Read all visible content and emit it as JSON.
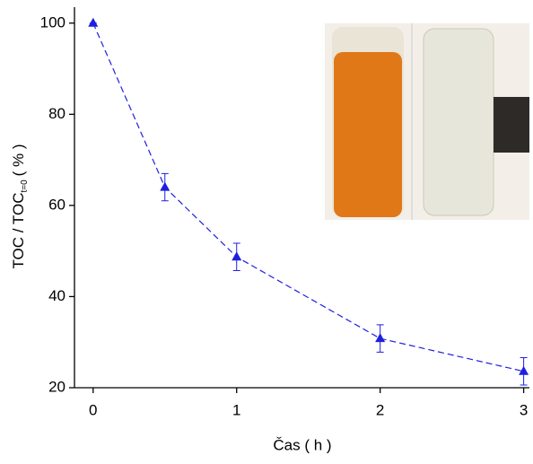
{
  "chart_data": {
    "type": "line",
    "x": [
      0,
      0.5,
      1,
      2,
      3
    ],
    "series": [
      {
        "values": [
          100,
          64,
          48.7,
          30.8,
          23.6
        ],
        "errors": [
          0,
          3,
          3,
          3,
          3
        ],
        "color": "#1f1fe0"
      }
    ],
    "xlim": [
      -0.13,
      3.04
    ],
    "ylim": [
      20,
      103.5
    ],
    "xticks": [
      0,
      1,
      2,
      3
    ],
    "yticks": [
      20,
      40,
      60,
      80,
      100
    ],
    "xlabel": "Čas ( h )",
    "ylabel": "TOC / TOC",
    "ylabel_sub": "t=0",
    "ylabel_unit": "( % )"
  }
}
